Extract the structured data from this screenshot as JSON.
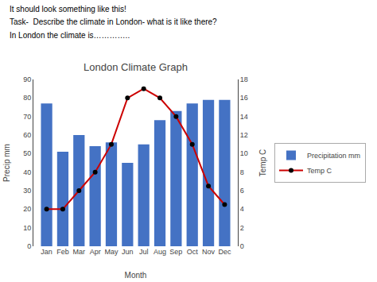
{
  "chart_data": {
    "type": "bar",
    "title": "London Climate Graph",
    "categories": [
      "Jan",
      "Feb",
      "Mar",
      "Apr",
      "May",
      "Jun",
      "Jul",
      "Aug",
      "Sep",
      "Oct",
      "Nov",
      "Dec"
    ],
    "series": [
      {
        "name": "Precipitation mm",
        "type": "bar",
        "color": "#4472C4",
        "values": [
          77,
          51,
          60,
          54,
          56,
          45,
          55,
          68,
          73,
          77,
          79,
          79
        ]
      },
      {
        "name": "Temp C",
        "type": "line",
        "color": "#CC0000",
        "marker": "circle",
        "axis": "y2",
        "values": [
          4,
          4,
          6,
          8,
          11,
          16,
          17,
          16,
          14,
          11,
          6.5,
          4.5
        ]
      }
    ],
    "xlabel": "Month",
    "ylabel": "Precip mm",
    "y2label": "Temp C",
    "ylim": [
      0,
      90
    ],
    "yticks": [
      0,
      10,
      20,
      30,
      40,
      50,
      60,
      70,
      80,
      90
    ],
    "y2lim": [
      0,
      18
    ],
    "y2ticks": [
      0,
      2,
      4,
      6,
      8,
      10,
      12,
      14,
      16,
      18
    ],
    "grid": false,
    "legend": "right",
    "annotations": [
      "It should look something like this!",
      "Task-  Describe the climate in London- what is it like there?",
      "In London the climate is………….."
    ]
  }
}
